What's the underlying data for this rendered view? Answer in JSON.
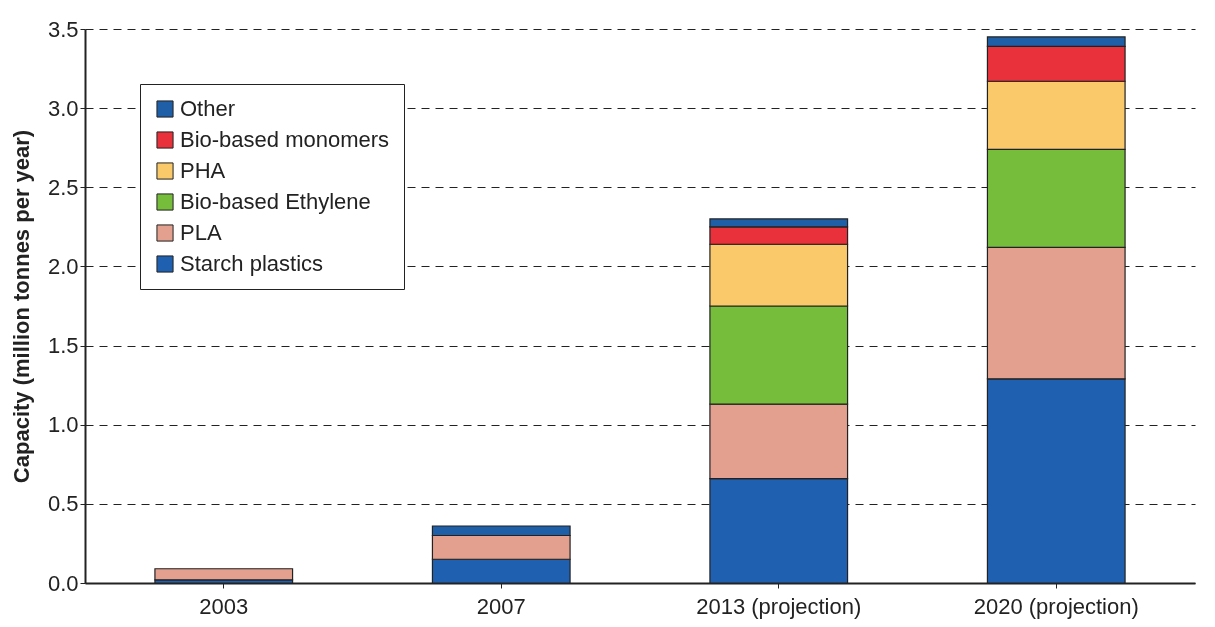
{
  "chart_data": {
    "type": "bar",
    "stacked": true,
    "ylabel": "Capacity (million tonnes per year)",
    "categories": [
      "2003",
      "2007",
      "2013 (projection)",
      "2020 (projection)"
    ],
    "series": [
      {
        "name": "Starch plastics",
        "color": "#2060b0",
        "values": [
          0.02,
          0.15,
          0.66,
          1.29
        ]
      },
      {
        "name": "PLA",
        "color": "#e3a08e",
        "values": [
          0.07,
          0.15,
          0.47,
          0.83
        ]
      },
      {
        "name": "Bio-based Ethylene",
        "color": "#76bd3c",
        "values": [
          null,
          null,
          0.62,
          0.62
        ]
      },
      {
        "name": "PHA",
        "color": "#f9c96a",
        "values": [
          null,
          null,
          0.39,
          0.43
        ]
      },
      {
        "name": "Bio-based monomers",
        "color": "#e8313a",
        "values": [
          null,
          null,
          0.11,
          0.22
        ]
      },
      {
        "name": "Other",
        "color": "#1f5fa8",
        "values": [
          null,
          0.06,
          0.05,
          0.06
        ]
      }
    ],
    "ylim": [
      0,
      3.5
    ],
    "yticks": [
      {
        "value": 0,
        "label": "0.0"
      },
      {
        "value": 0.5,
        "label": "0.5"
      },
      {
        "value": 1,
        "label": "1.0"
      },
      {
        "value": 1.5,
        "label": "1.5"
      },
      {
        "value": 2,
        "label": "2.0"
      },
      {
        "value": 2.5,
        "label": "2.5"
      },
      {
        "value": 3,
        "label": "3.0"
      },
      {
        "value": 3.5,
        "label": "3.5"
      }
    ],
    "grid": "y",
    "legend": "top left"
  }
}
